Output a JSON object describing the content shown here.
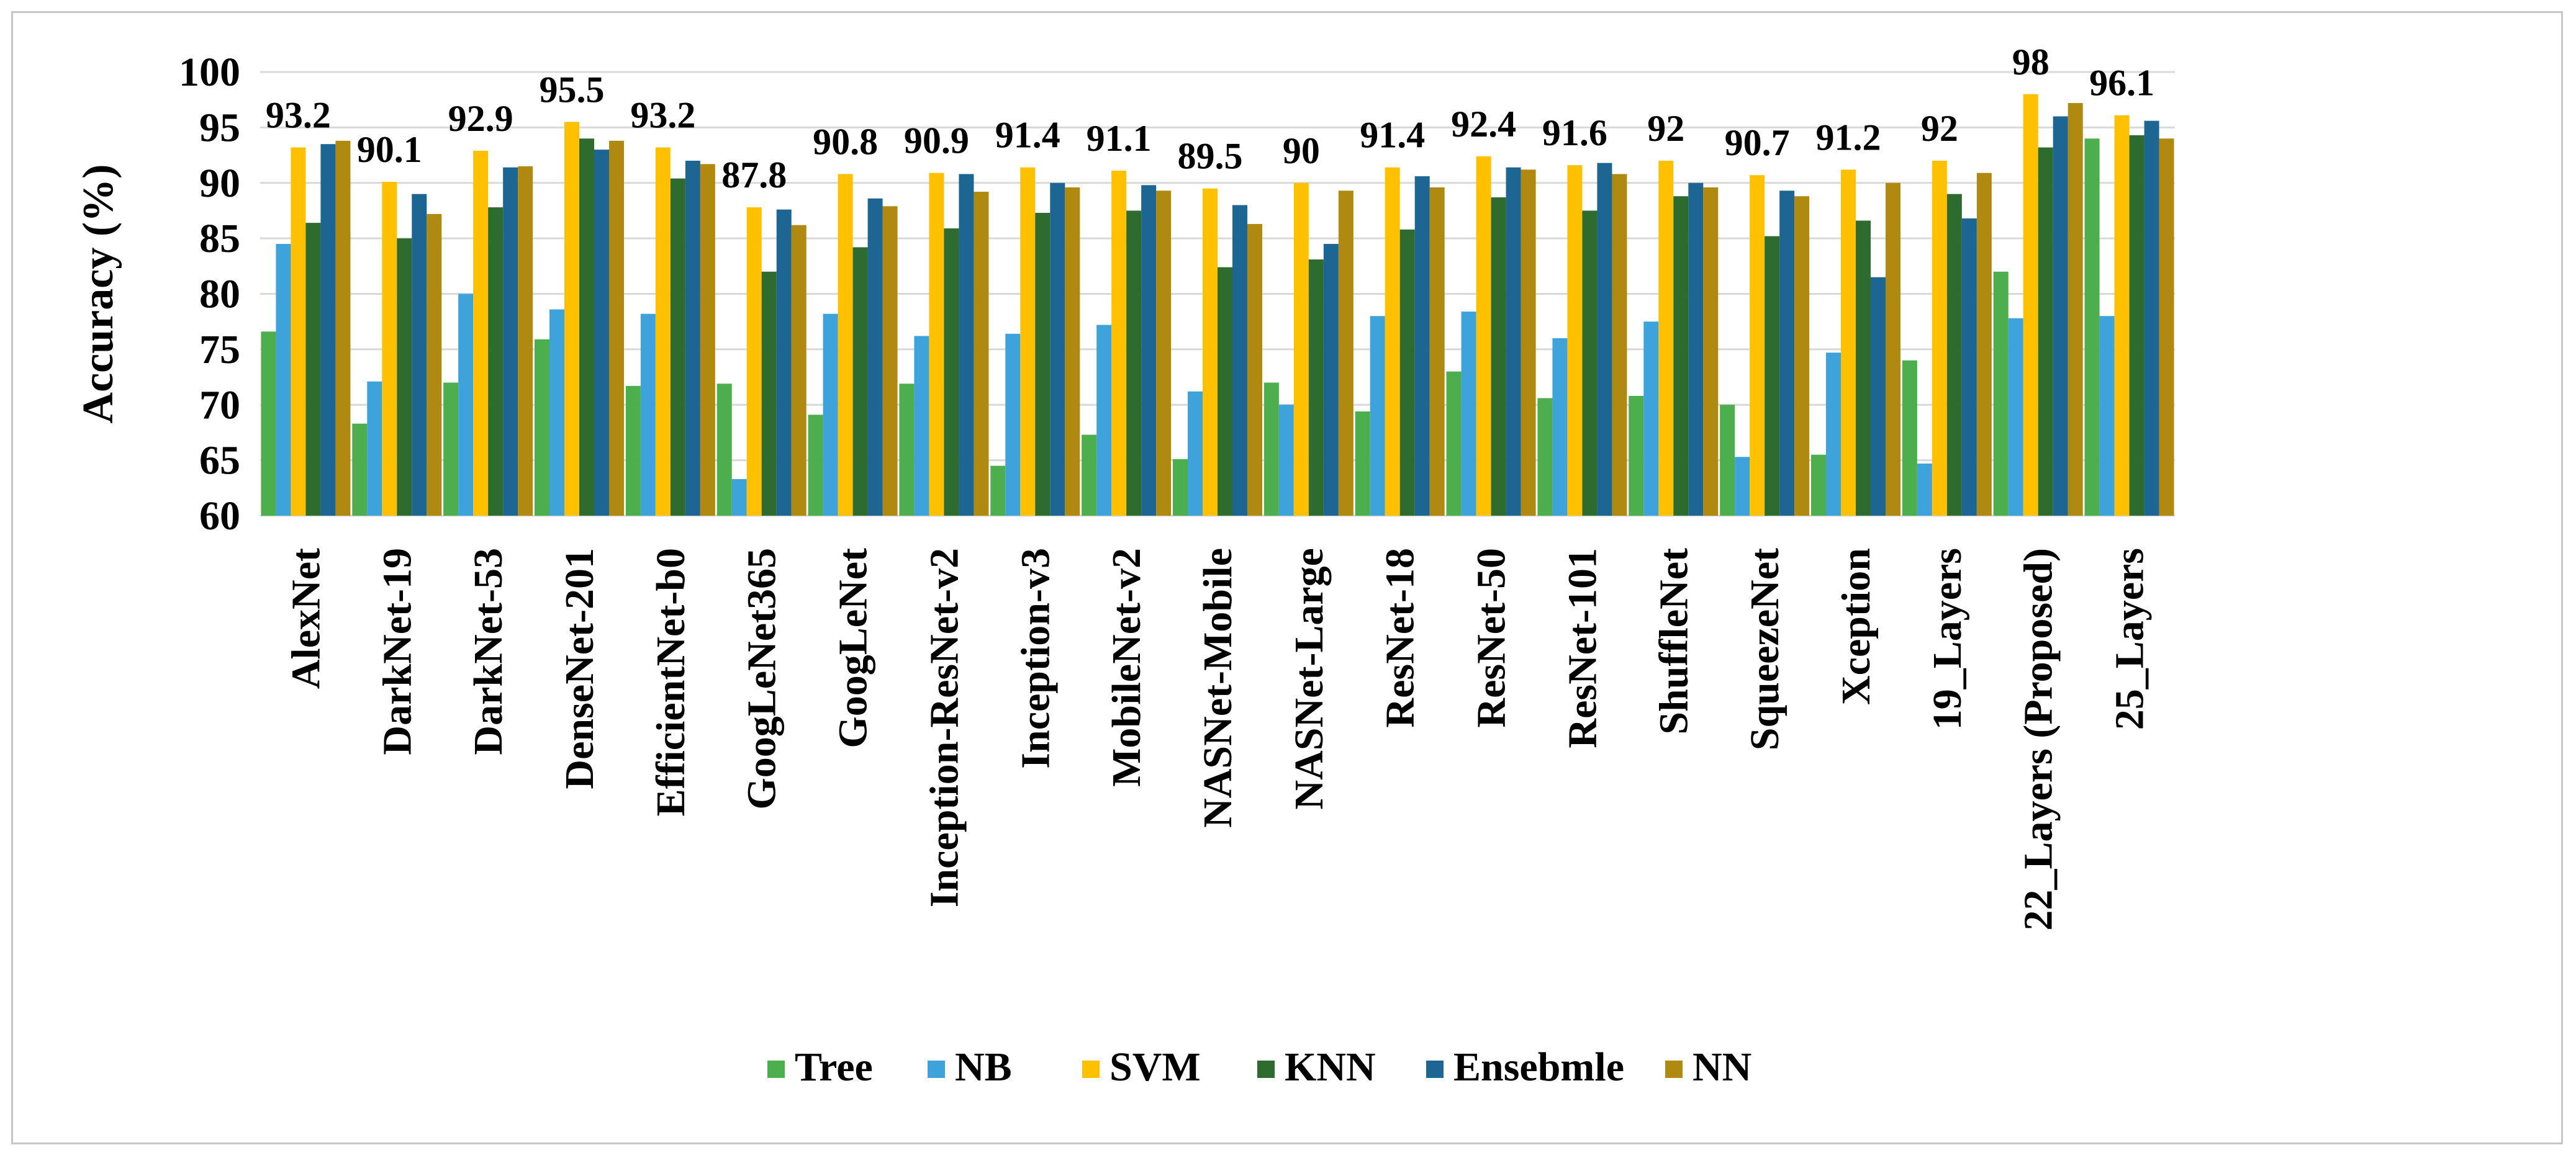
{
  "chart_data": {
    "type": "bar",
    "title": "",
    "xlabel": "",
    "ylabel": "Accuracy (%)",
    "ylim": [
      60,
      100
    ],
    "yticks": [
      60,
      65,
      70,
      75,
      80,
      85,
      90,
      95,
      100
    ],
    "grid": true,
    "legend_position": "bottom",
    "categories": [
      "AlexNet",
      "DarkNet-19",
      "DarkNet-53",
      "DenseNet-201",
      "EfficientNet-b0",
      "GoogLeNet365",
      "GoogLeNet",
      "Inception-ResNet-v2",
      "Inception-v3",
      "MobileNet-v2",
      "NASNet-Mobile",
      "NASNet-Large",
      "ResNet-18",
      "ResNet-50",
      "ResNet-101",
      "ShuffleNet",
      "SqueezeNet",
      "Xception",
      "19_Layers",
      "22_Layers (Proposed)",
      "25_Layers"
    ],
    "series": [
      {
        "name": "Tree",
        "color": "#4cae4c",
        "values": [
          76.6,
          68.3,
          72.0,
          75.9,
          71.7,
          71.9,
          69.1,
          71.9,
          64.5,
          67.3,
          65.1,
          72.0,
          69.4,
          73.0,
          70.6,
          70.8,
          70.0,
          65.5,
          74.0,
          82.0,
          94.0
        ]
      },
      {
        "name": "NB",
        "color": "#3fa3db",
        "values": [
          84.5,
          72.1,
          80.0,
          78.6,
          78.2,
          63.3,
          78.2,
          76.2,
          76.4,
          77.2,
          71.2,
          70.0,
          78.0,
          78.4,
          76.0,
          77.5,
          65.3,
          74.7,
          64.7,
          77.8,
          78.0
        ]
      },
      {
        "name": "SVM",
        "color": "#ffc000",
        "values": [
          93.2,
          90.1,
          92.9,
          95.5,
          93.2,
          87.8,
          90.8,
          90.9,
          91.4,
          91.1,
          89.5,
          90.0,
          91.4,
          92.4,
          91.6,
          92.0,
          90.7,
          91.2,
          92.0,
          98.0,
          96.1
        ]
      },
      {
        "name": "KNN",
        "color": "#2e6b2e",
        "values": [
          86.4,
          85.0,
          87.8,
          94.0,
          90.4,
          82.0,
          84.2,
          85.9,
          87.3,
          87.5,
          82.4,
          83.1,
          85.8,
          88.7,
          87.5,
          88.8,
          85.2,
          86.6,
          89.0,
          93.2,
          94.3
        ]
      },
      {
        "name": "Ensebmle",
        "color": "#1d6694",
        "values": [
          93.5,
          89.0,
          91.4,
          93.0,
          92.0,
          87.6,
          88.6,
          90.8,
          90.0,
          89.8,
          88.0,
          84.5,
          90.6,
          91.4,
          91.8,
          90.0,
          89.3,
          81.5,
          86.8,
          96.0,
          95.6
        ]
      },
      {
        "name": "NN",
        "color": "#b08a10",
        "values": [
          93.8,
          87.2,
          91.5,
          93.8,
          91.7,
          86.2,
          87.9,
          89.2,
          89.6,
          89.3,
          86.3,
          89.3,
          89.6,
          91.2,
          90.8,
          89.6,
          88.8,
          90.0,
          90.9,
          97.2,
          94.0
        ]
      }
    ],
    "data_labels": [
      "93.2",
      "90.1",
      "92.9",
      "95.5",
      "93.2",
      "87.8",
      "90.8",
      "90.9",
      "91.4",
      "91.1",
      "89.5",
      "90",
      "91.4",
      "92.4",
      "91.6",
      "92",
      "90.7",
      "91.2",
      "92",
      "98",
      "96.1"
    ]
  }
}
